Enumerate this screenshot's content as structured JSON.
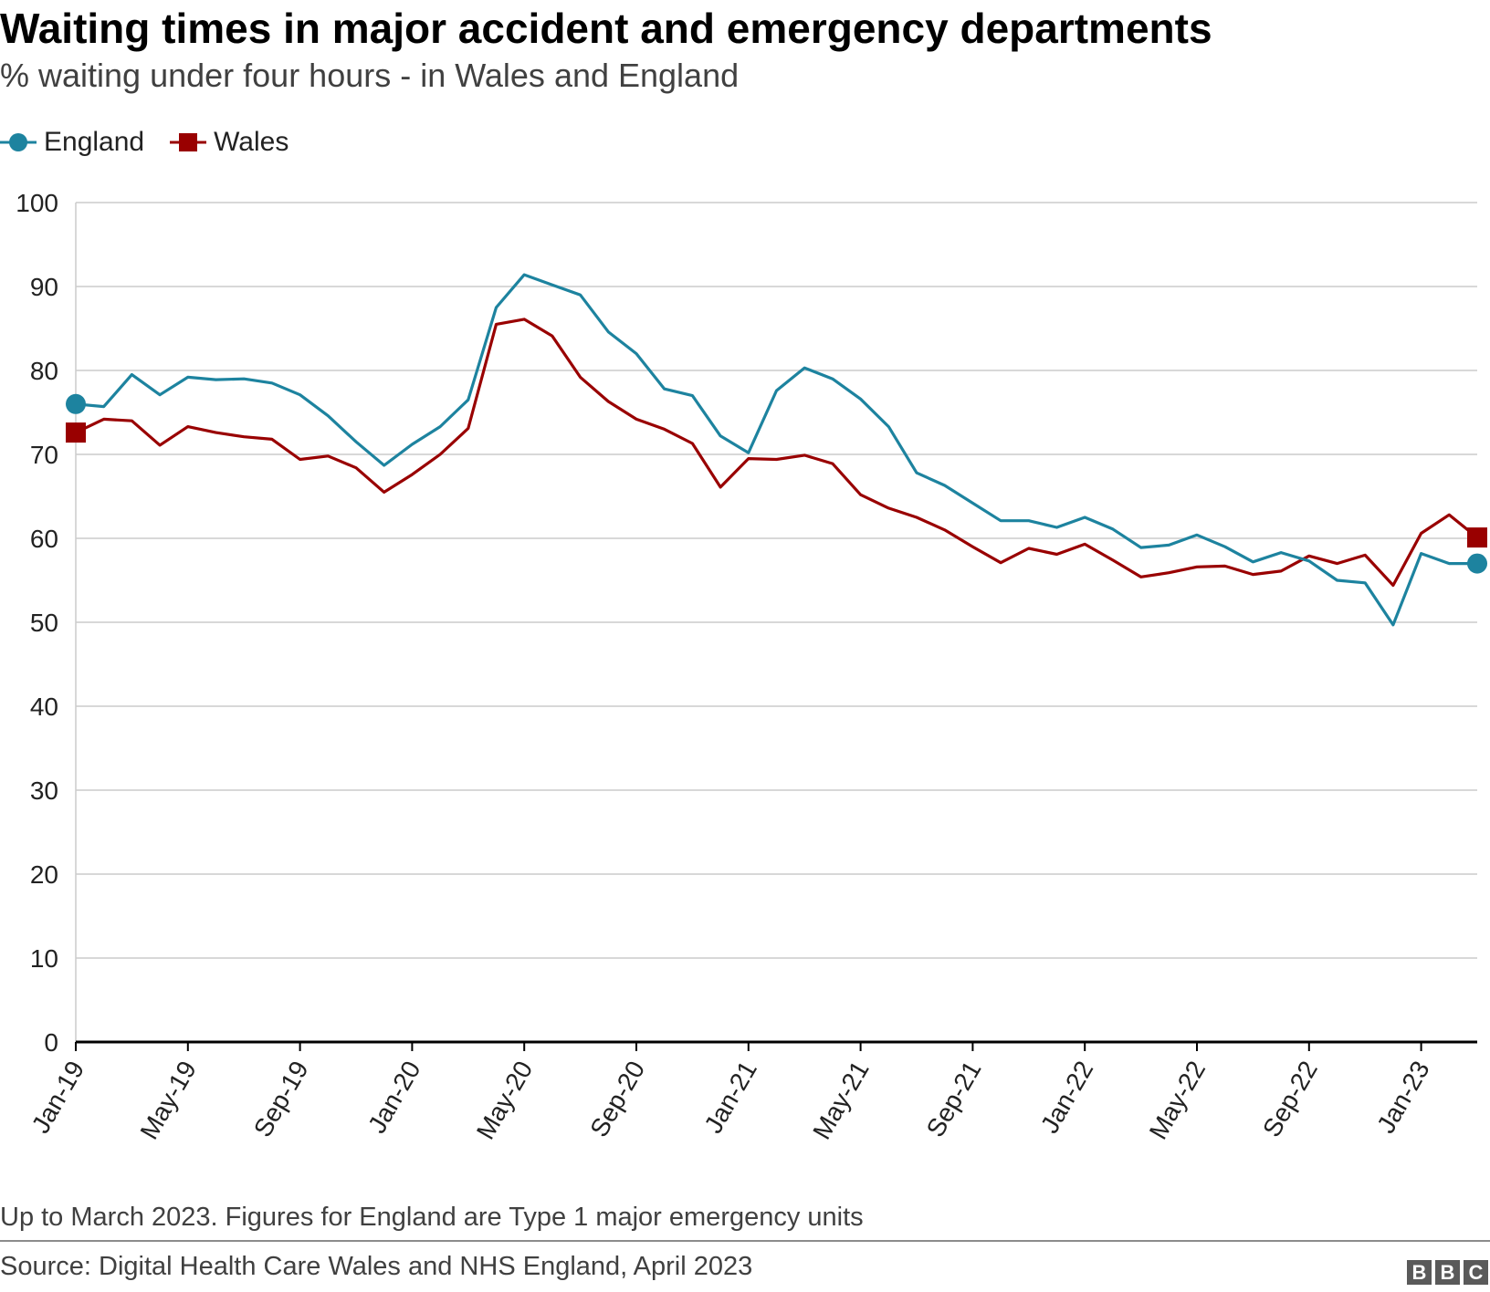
{
  "header": {
    "title": "Waiting times in major accident and emergency departments",
    "subtitle": "% waiting under four hours - in Wales and England"
  },
  "legend": {
    "england": "England",
    "wales": "Wales"
  },
  "colors": {
    "england": "#1d839f",
    "wales": "#990000",
    "gridline": "#cccccc",
    "axis": "#000000"
  },
  "chart_data": {
    "type": "line",
    "title": "Waiting times in major accident and emergency departments",
    "subtitle": "% waiting under four hours - in Wales and England",
    "xlabel": "",
    "ylabel": "",
    "ylim": [
      0,
      100
    ],
    "yticks": [
      0,
      10,
      20,
      30,
      40,
      50,
      60,
      70,
      80,
      90,
      100
    ],
    "grid": true,
    "legend_position": "top-left",
    "x": [
      "Jan-19",
      "Feb-19",
      "Mar-19",
      "Apr-19",
      "May-19",
      "Jun-19",
      "Jul-19",
      "Aug-19",
      "Sep-19",
      "Oct-19",
      "Nov-19",
      "Dec-19",
      "Jan-20",
      "Feb-20",
      "Mar-20",
      "Apr-20",
      "May-20",
      "Jun-20",
      "Jul-20",
      "Aug-20",
      "Sep-20",
      "Oct-20",
      "Nov-20",
      "Dec-20",
      "Jan-21",
      "Feb-21",
      "Mar-21",
      "Apr-21",
      "May-21",
      "Jun-21",
      "Jul-21",
      "Aug-21",
      "Sep-21",
      "Oct-21",
      "Nov-21",
      "Dec-21",
      "Jan-22",
      "Feb-22",
      "Mar-22",
      "Apr-22",
      "May-22",
      "Jun-22",
      "Jul-22",
      "Aug-22",
      "Sep-22",
      "Oct-22",
      "Nov-22",
      "Dec-22",
      "Jan-23",
      "Feb-23",
      "Mar-23"
    ],
    "xtick_labels": [
      "Jan-19",
      "May-19",
      "Sep-19",
      "Jan-20",
      "May-20",
      "Sep-20",
      "Jan-21",
      "May-21",
      "Sep-21",
      "Jan-22",
      "May-22",
      "Sep-22",
      "Jan-23"
    ],
    "series": [
      {
        "name": "England",
        "marker": "circle",
        "values": [
          76.0,
          75.7,
          79.5,
          77.1,
          79.2,
          78.9,
          79.0,
          78.5,
          77.1,
          74.6,
          71.5,
          68.7,
          71.2,
          73.3,
          76.5,
          87.5,
          91.4,
          90.2,
          89.0,
          84.6,
          82.0,
          77.8,
          77.0,
          72.2,
          70.2,
          77.6,
          80.3,
          79.0,
          76.6,
          73.3,
          67.8,
          66.3,
          64.2,
          62.1,
          62.1,
          61.3,
          62.5,
          61.1,
          58.9,
          59.2,
          60.4,
          59.0,
          57.2,
          58.3,
          57.3,
          55.0,
          54.7,
          49.7,
          58.2,
          57.0,
          57.0
        ]
      },
      {
        "name": "Wales",
        "marker": "square",
        "values": [
          72.6,
          74.2,
          74.0,
          71.1,
          73.3,
          72.6,
          72.1,
          71.8,
          69.4,
          69.8,
          68.4,
          65.5,
          67.6,
          70.0,
          73.1,
          85.5,
          86.1,
          84.1,
          79.2,
          76.3,
          74.2,
          73.0,
          71.3,
          66.1,
          69.5,
          69.4,
          69.9,
          68.9,
          65.2,
          63.6,
          62.5,
          61.0,
          59.0,
          57.1,
          58.8,
          58.1,
          59.3,
          57.4,
          55.4,
          55.9,
          56.6,
          56.7,
          55.7,
          56.1,
          57.9,
          57.0,
          58.0,
          54.4,
          60.6,
          62.8,
          60.1
        ]
      }
    ]
  },
  "footer": {
    "note": "Up to March 2023. Figures for England are Type 1 major emergency units",
    "source": "Source: Digital Health Care Wales and NHS England, April 2023",
    "logo_letters": [
      "B",
      "B",
      "C"
    ]
  }
}
